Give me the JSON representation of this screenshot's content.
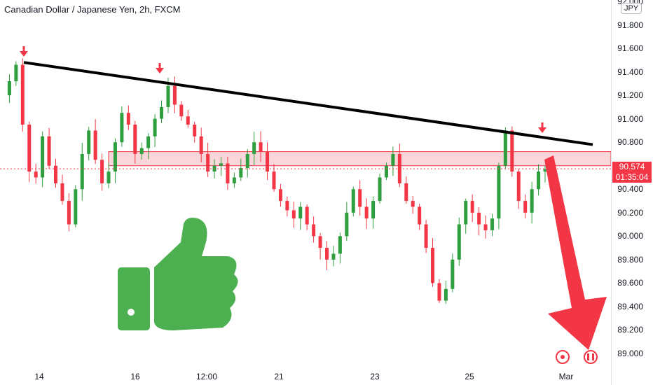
{
  "chart": {
    "title": "Canadian Dollar / Japanese Yen, 2h, FXCM",
    "currency": "JPY",
    "last_price": "90.574",
    "countdown": "01:35:04"
  },
  "colors": {
    "up": "#2e9e3f",
    "down": "#f23645",
    "trendline": "#000000",
    "zone_fill": "#f7c5cb",
    "zone_stroke": "#f23645",
    "arrow": "#f23645",
    "thumb": "#4caf50"
  },
  "icons": [
    "down-arrow-marker-icon",
    "thumbs-up-icon",
    "big-down-arrow-icon",
    "clock-icon",
    "canada-flag-icon"
  ],
  "chart_data": {
    "type": "candlestick",
    "title": "Canadian Dollar / Japanese Yen, 2h, FXCM",
    "y_ticks": [
      "92.000",
      "91.800",
      "91.600",
      "91.400",
      "91.200",
      "91.000",
      "90.800",
      "90.600",
      "90.400",
      "90.200",
      "90.000",
      "89.800",
      "89.600",
      "89.400",
      "89.200",
      "89.000"
    ],
    "ylim": [
      89.0,
      92.0
    ],
    "x_ticks": [
      "14",
      "16",
      "12:00",
      "21",
      "23",
      "25",
      "Mar"
    ],
    "grid": false,
    "resistance_zone": [
      90.6,
      90.72
    ],
    "trendline": {
      "start": 91.48,
      "end": 90.78
    },
    "close_path": [
      91.2,
      91.32,
      91.46,
      90.95,
      90.55,
      90.5,
      90.85,
      90.6,
      90.45,
      90.3,
      90.1,
      90.4,
      90.7,
      90.9,
      90.65,
      90.45,
      90.55,
      90.8,
      91.05,
      90.95,
      90.7,
      90.75,
      90.85,
      91.0,
      91.1,
      91.28,
      91.12,
      91.02,
      90.95,
      90.85,
      90.7,
      90.55,
      90.6,
      90.62,
      90.45,
      90.5,
      90.58,
      90.7,
      90.8,
      90.72,
      90.55,
      90.4,
      90.3,
      90.22,
      90.15,
      90.25,
      90.1,
      90.0,
      89.9,
      89.8,
      89.85,
      90.0,
      90.2,
      90.4,
      90.25,
      90.15,
      90.3,
      90.5,
      90.6,
      90.7,
      90.45,
      90.3,
      90.25,
      90.1,
      89.9,
      89.6,
      89.45,
      89.55,
      89.8,
      90.1,
      90.3,
      90.2,
      90.1,
      90.05,
      90.15,
      90.6,
      90.9,
      90.55,
      90.3,
      90.2,
      90.4,
      90.55,
      90.57
    ]
  }
}
